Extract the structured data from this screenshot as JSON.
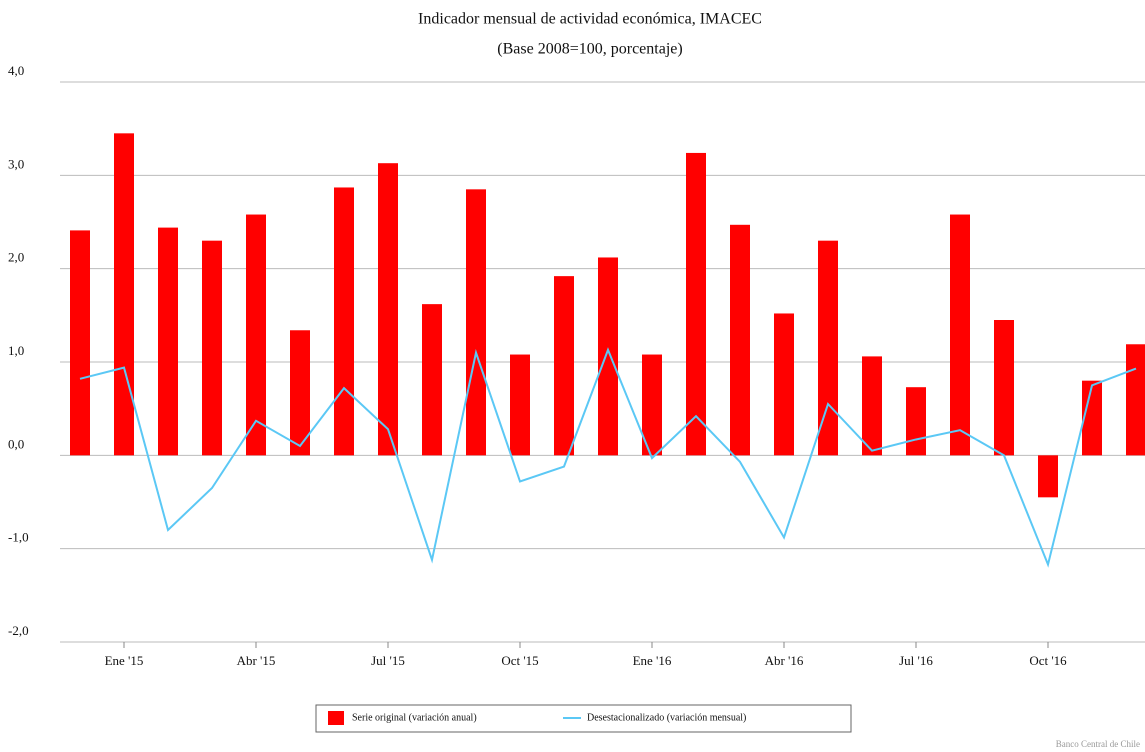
{
  "chart_data": {
    "type": "bar_line",
    "title": "Indicador mensual de actividad económica, IMACEC",
    "subtitle": "(Base 2008=100, porcentaje)",
    "categories": [
      null,
      "Ene '15",
      null,
      null,
      "Abr '15",
      null,
      null,
      "Jul '15",
      null,
      null,
      "Oct '15",
      null,
      null,
      "Ene '16",
      null,
      null,
      "Abr '16",
      null,
      null,
      "Jul '16",
      null,
      null,
      "Oct '16",
      null,
      null
    ],
    "series": [
      {
        "name": "Serie original (variación anual)",
        "color": "#ff0000",
        "kind": "bar",
        "values": [
          2.41,
          3.45,
          2.44,
          2.3,
          2.58,
          1.34,
          2.87,
          3.13,
          1.62,
          2.85,
          1.08,
          1.92,
          2.12,
          1.08,
          3.24,
          2.47,
          1.52,
          2.3,
          1.06,
          0.73,
          2.58,
          1.45,
          -0.45,
          0.8,
          1.19
        ]
      },
      {
        "name": "Desestacionalizado (variación mensual)",
        "color": "#5bc8f5",
        "kind": "line",
        "values": [
          0.82,
          0.94,
          -0.8,
          -0.35,
          0.37,
          0.1,
          0.72,
          0.28,
          -1.12,
          1.1,
          -0.28,
          -0.12,
          1.13,
          -0.03,
          0.42,
          -0.07,
          -0.88,
          0.55,
          0.05,
          0.17,
          0.27,
          0.0,
          -1.17,
          0.75,
          0.93
        ]
      }
    ],
    "ylim": [
      -2,
      4
    ],
    "yticks": [
      {
        "value": -2,
        "label": "-2,0"
      },
      {
        "value": -1,
        "label": "-1,0"
      },
      {
        "value": 0,
        "label": "0,0"
      },
      {
        "value": 1,
        "label": "1,0"
      },
      {
        "value": 2,
        "label": "2,0"
      },
      {
        "value": 3,
        "label": "3,0"
      },
      {
        "value": 4,
        "label": "4,0"
      }
    ],
    "grid": true,
    "legend": "bottom",
    "source": "Banco Central de Chile"
  }
}
